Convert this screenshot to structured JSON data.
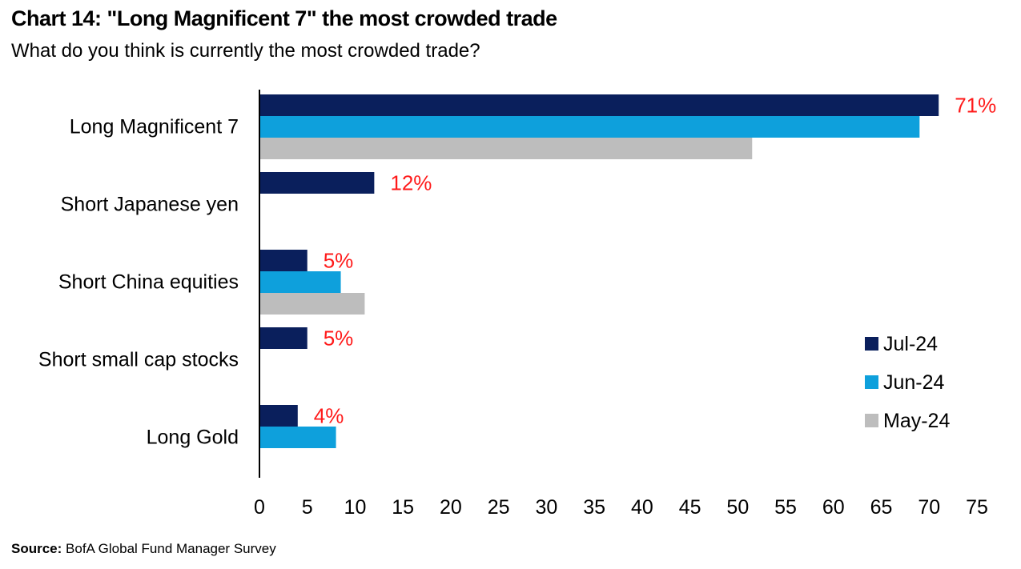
{
  "chart_data": {
    "type": "bar",
    "orientation": "horizontal",
    "title": "Chart 14: \"Long Magnificent 7\" the most crowded trade",
    "subtitle": "What do you think is currently the most crowded trade?",
    "categories": [
      "Long Magnificent 7",
      "Short Japanese yen",
      "Short China equities",
      "Short small cap stocks",
      "Long Gold"
    ],
    "series": [
      {
        "name": "Jul-24",
        "color": "#0a1f5c",
        "values": [
          71,
          12,
          5,
          5,
          4
        ]
      },
      {
        "name": "Jun-24",
        "color": "#0ea0dc",
        "values": [
          69,
          null,
          8.5,
          null,
          8
        ]
      },
      {
        "name": "May-24",
        "color": "#bdbdbd",
        "values": [
          51.5,
          null,
          11,
          null,
          null
        ]
      }
    ],
    "data_labels": [
      "71%",
      "12%",
      "5%",
      "5%",
      "4%"
    ],
    "xlim": [
      0,
      75
    ],
    "xticks": [
      0,
      5,
      10,
      15,
      20,
      25,
      30,
      35,
      40,
      45,
      50,
      55,
      60,
      65,
      70,
      75
    ],
    "xlabel": "",
    "ylabel": "",
    "grid": false,
    "legend_position": "right"
  },
  "source": {
    "label": "Source:",
    "text": " BofA Global Fund Manager Survey"
  }
}
